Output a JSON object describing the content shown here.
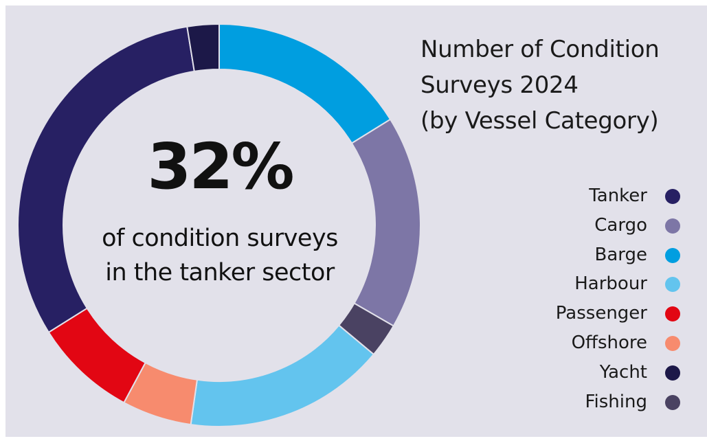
{
  "chart_data": {
    "type": "pie",
    "title_lines": [
      "Number of Condition",
      "Surveys 2024",
      "(by Vessel Category)"
    ],
    "center": {
      "value": "32%",
      "caption_lines": [
        "of condition surveys",
        "in the tanker sector"
      ]
    },
    "legend_position": "right",
    "legend": [
      {
        "label": "Tanker",
        "color": "#272063"
      },
      {
        "label": "Cargo",
        "color": "#7d76a6"
      },
      {
        "label": "Barge",
        "color": "#009ee0"
      },
      {
        "label": "Harbour",
        "color": "#63c4ee"
      },
      {
        "label": "Passenger",
        "color": "#e20613"
      },
      {
        "label": "Offshore",
        "color": "#f78b6e"
      },
      {
        "label": "Yacht",
        "color": "#1c1848"
      },
      {
        "label": "Fishing",
        "color": "#4a4262"
      }
    ],
    "slices": [
      {
        "label": "Barge",
        "value": 16.5,
        "color": "#009ee0"
      },
      {
        "label": "Cargo",
        "value": 17.5,
        "color": "#7d76a6"
      },
      {
        "label": "Fishing",
        "value": 2.8,
        "color": "#4a4262"
      },
      {
        "label": "Harbour",
        "value": 16.5,
        "color": "#63c4ee"
      },
      {
        "label": "Offshore",
        "value": 5.7,
        "color": "#f78b6e"
      },
      {
        "label": "Passenger",
        "value": 8.4,
        "color": "#e20613"
      },
      {
        "label": "Tanker",
        "value": 32,
        "color": "#272063"
      },
      {
        "label": "Yacht",
        "value": 2.6,
        "color": "#1c1848"
      }
    ]
  }
}
